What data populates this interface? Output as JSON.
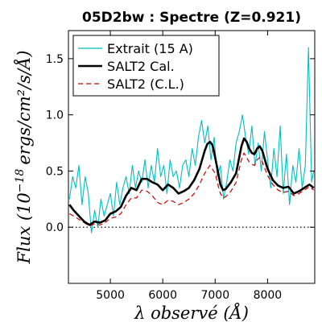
{
  "chart_data": {
    "type": "line",
    "title": "05D2bw : Spectre (Z=0.921)",
    "xlabel": "λ observé (Å)",
    "ylabel_prefix": "Flux (10",
    "ylabel_exponent": "−18",
    "ylabel_suffix": "ergs/cm²/s/Å)",
    "xlim": [
      4200,
      8900
    ],
    "ylim": [
      -0.5,
      1.75
    ],
    "xticks": [
      5000,
      6000,
      7000,
      8000
    ],
    "xtick_labels": [
      "5000",
      "6000",
      "7000",
      "8000"
    ],
    "yticks": [
      0.0,
      0.5,
      1.0,
      1.5
    ],
    "ytick_labels": [
      "0.0",
      "0.5",
      "1.0",
      "1.5"
    ],
    "grid": false,
    "zero_line": {
      "y": 0,
      "style": "dotted",
      "color": "#000000"
    },
    "legend_position": "top-left",
    "legend": [
      {
        "label": "Extrait (15 A)",
        "color": "#00bfbf",
        "style": "solid"
      },
      {
        "label": "SALT2 Cal.",
        "color": "#000000",
        "style": "solid-thick"
      },
      {
        "label": "SALT2 (C.L.)",
        "color": "#cc0000",
        "style": "dashed"
      }
    ],
    "series": [
      {
        "name": "Extrait (15 A)",
        "color": "#00bfbf",
        "x": [
          4220,
          4280,
          4340,
          4400,
          4460,
          4520,
          4580,
          4640,
          4700,
          4760,
          4820,
          4880,
          4940,
          5000,
          5060,
          5120,
          5180,
          5240,
          5300,
          5360,
          5420,
          5480,
          5540,
          5600,
          5660,
          5720,
          5780,
          5840,
          5900,
          5960,
          6020,
          6080,
          6140,
          6200,
          6260,
          6320,
          6380,
          6440,
          6500,
          6560,
          6620,
          6680,
          6740,
          6800,
          6860,
          6920,
          6980,
          7040,
          7100,
          7160,
          7220,
          7280,
          7340,
          7400,
          7460,
          7520,
          7580,
          7640,
          7700,
          7760,
          7820,
          7880,
          7940,
          8000,
          8060,
          8120,
          8180,
          8240,
          8300,
          8360,
          8420,
          8480,
          8540,
          8600,
          8660,
          8720,
          8780,
          8840,
          8880
        ],
        "y": [
          0.25,
          0.45,
          0.35,
          0.55,
          0.2,
          0.45,
          0.3,
          -0.05,
          0.15,
          0.0,
          0.25,
          0.1,
          0.2,
          0.3,
          0.1,
          0.4,
          0.2,
          0.35,
          0.45,
          0.3,
          0.55,
          0.35,
          0.5,
          0.4,
          0.6,
          0.35,
          0.55,
          0.4,
          0.7,
          0.45,
          0.55,
          0.3,
          0.6,
          0.45,
          0.5,
          0.35,
          0.55,
          0.6,
          0.45,
          0.7,
          0.55,
          0.8,
          0.95,
          0.75,
          0.9,
          0.6,
          0.8,
          0.45,
          0.55,
          0.25,
          0.4,
          0.6,
          0.5,
          0.75,
          0.85,
          1.0,
          0.8,
          0.65,
          0.9,
          0.55,
          0.75,
          0.5,
          0.85,
          0.6,
          0.35,
          0.7,
          0.45,
          0.9,
          0.3,
          0.65,
          0.2,
          0.55,
          0.4,
          0.7,
          0.35,
          0.55,
          1.6,
          0.4,
          0.5
        ]
      },
      {
        "name": "SALT2 Cal.",
        "color": "#000000",
        "x": [
          4220,
          4300,
          4400,
          4500,
          4600,
          4700,
          4800,
          4900,
          5000,
          5100,
          5200,
          5300,
          5400,
          5500,
          5600,
          5700,
          5800,
          5900,
          6000,
          6100,
          6200,
          6300,
          6400,
          6500,
          6600,
          6700,
          6800,
          6850,
          6900,
          6950,
          7000,
          7050,
          7100,
          7150,
          7200,
          7300,
          7400,
          7450,
          7500,
          7550,
          7600,
          7650,
          7700,
          7750,
          7800,
          7850,
          7900,
          7950,
          8000,
          8100,
          8200,
          8300,
          8400,
          8500,
          8600,
          8700,
          8800,
          8880
        ],
        "y": [
          0.2,
          0.15,
          0.1,
          0.05,
          0.02,
          0.05,
          0.04,
          0.06,
          0.12,
          0.14,
          0.18,
          0.28,
          0.35,
          0.33,
          0.43,
          0.43,
          0.4,
          0.38,
          0.33,
          0.38,
          0.35,
          0.3,
          0.32,
          0.35,
          0.42,
          0.52,
          0.68,
          0.74,
          0.76,
          0.73,
          0.62,
          0.5,
          0.38,
          0.33,
          0.34,
          0.4,
          0.48,
          0.6,
          0.72,
          0.79,
          0.76,
          0.7,
          0.66,
          0.65,
          0.7,
          0.72,
          0.68,
          0.6,
          0.52,
          0.42,
          0.37,
          0.35,
          0.36,
          0.3,
          0.32,
          0.35,
          0.38,
          0.35
        ]
      },
      {
        "name": "SALT2 (C.L.)",
        "color": "#cc0000",
        "x": [
          4220,
          4300,
          4400,
          4500,
          4600,
          4700,
          4800,
          4900,
          5000,
          5100,
          5200,
          5300,
          5400,
          5500,
          5600,
          5700,
          5800,
          5900,
          6000,
          6100,
          6200,
          6300,
          6400,
          6500,
          6600,
          6700,
          6800,
          6900,
          7000,
          7050,
          7100,
          7150,
          7200,
          7300,
          7400,
          7450,
          7500,
          7550,
          7600,
          7650,
          7700,
          7750,
          7800,
          7850,
          7900,
          7950,
          8000,
          8100,
          8200,
          8300,
          8400,
          8500,
          8600,
          8700,
          8800,
          8880
        ],
        "y": [
          0.12,
          0.1,
          0.07,
          0.04,
          0.01,
          0.03,
          0.02,
          0.04,
          0.08,
          0.09,
          0.12,
          0.2,
          0.26,
          0.26,
          0.33,
          0.32,
          0.28,
          0.22,
          0.2,
          0.24,
          0.23,
          0.2,
          0.22,
          0.25,
          0.3,
          0.38,
          0.48,
          0.55,
          0.48,
          0.38,
          0.3,
          0.26,
          0.27,
          0.32,
          0.4,
          0.5,
          0.6,
          0.66,
          0.62,
          0.58,
          0.56,
          0.55,
          0.6,
          0.62,
          0.58,
          0.52,
          0.46,
          0.38,
          0.33,
          0.31,
          0.32,
          0.28,
          0.3,
          0.33,
          0.36,
          0.33
        ]
      }
    ]
  }
}
